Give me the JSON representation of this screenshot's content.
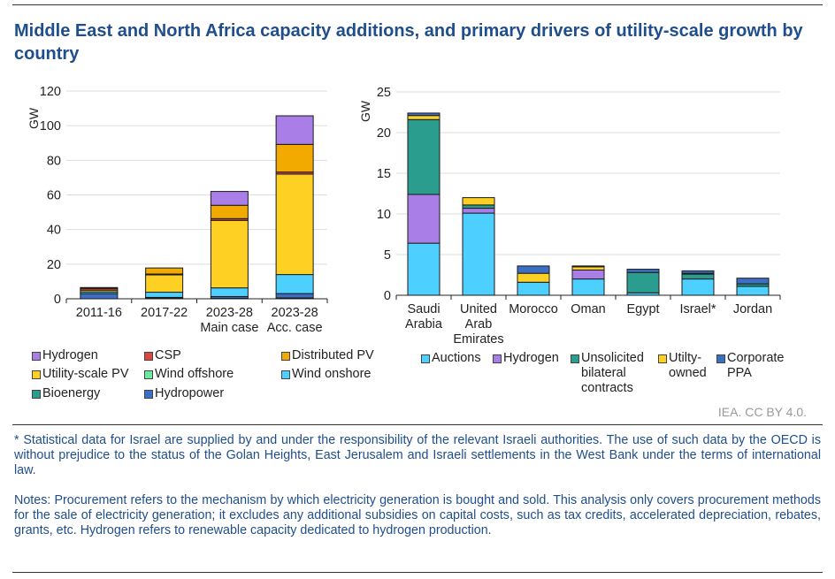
{
  "title": "Middle East and North Africa capacity additions, and primary drivers of utility-scale growth by country",
  "credit": "IEA. CC BY 4.0.",
  "footnote": "* Statistical data for Israel are supplied by and under the responsibility of the relevant Israeli authorities. The use of such data by the OECD is without prejudice to the status of the Golan Heights, East Jerusalem and Israeli settlements in the West Bank under the terms of international law.",
  "notes": "Notes: Procurement refers to the mechanism by which electricity generation is bought and sold. This analysis only covers procurement methods for the sale of electricity generation; it excludes any additional subsidies on capital costs, such as tax credits, accelerated depreciation, rebates, grants, etc. Hydrogen refers to renewable capacity dedicated to hydrogen production.",
  "chart_data": [
    {
      "type": "bar",
      "stacked": true,
      "ylabel": "GW",
      "ylim": [
        0,
        120
      ],
      "yticks": [
        0,
        20,
        40,
        60,
        80,
        100,
        120
      ],
      "grid": true,
      "legend_position": "bottom",
      "categories": [
        "2011-16",
        "2017-22",
        "2023-28\nMain case",
        "2023-28\nAcc. case"
      ],
      "series": [
        {
          "name": "Bioenergy",
          "color": "#2a9d8f",
          "values": [
            0,
            0.3,
            0.3,
            0.5
          ]
        },
        {
          "name": "Hydropower",
          "color": "#3a6fc4",
          "values": [
            3,
            0.5,
            1,
            2.5
          ]
        },
        {
          "name": "Wind onshore",
          "color": "#4dcfff",
          "values": [
            1,
            3,
            5,
            11
          ]
        },
        {
          "name": "Wind offshore",
          "color": "#6ee7a0",
          "values": [
            0,
            0,
            0,
            0
          ]
        },
        {
          "name": "Utility-scale PV",
          "color": "#fdd023",
          "values": [
            1,
            10,
            39,
            58
          ]
        },
        {
          "name": "CSP",
          "color": "#d9473f",
          "values": [
            1,
            0.5,
            1,
            1.2
          ]
        },
        {
          "name": "Distributed PV",
          "color": "#f2a900",
          "values": [
            0.5,
            3.5,
            7.7,
            16
          ]
        },
        {
          "name": "Hydrogen",
          "color": "#a97ee6",
          "values": [
            0,
            0,
            8,
            16.5
          ]
        }
      ],
      "legend_order": [
        "Hydrogen",
        "CSP",
        "Distributed PV",
        "Utility-scale PV",
        "Wind offshore",
        "Wind onshore",
        "Bioenergy",
        "Hydropower"
      ]
    },
    {
      "type": "bar",
      "stacked": true,
      "ylabel": "GW",
      "ylim": [
        0,
        25
      ],
      "yticks": [
        0,
        5,
        10,
        15,
        20,
        25
      ],
      "grid": true,
      "legend_position": "bottom",
      "categories": [
        "Saudi\nArabia",
        "United\nArab\nEmirates",
        "Morocco",
        "Oman",
        "Egypt",
        "Israel*",
        "Jordan"
      ],
      "series": [
        {
          "name": "Auctions",
          "color": "#4dcfff",
          "values": [
            6.4,
            10.1,
            1.6,
            2.0,
            0.3,
            2.0,
            1.1
          ]
        },
        {
          "name": "Hydrogen",
          "color": "#a97ee6",
          "values": [
            6.0,
            0.6,
            0,
            1.1,
            0,
            0,
            0
          ]
        },
        {
          "name": "Unsolicited bilateral contracts",
          "color": "#2a9d8f",
          "values": [
            9.2,
            0.4,
            0,
            0,
            2.5,
            0.6,
            0.3
          ]
        },
        {
          "name": "Utilty-owned",
          "color": "#fdd023",
          "values": [
            0.5,
            0.9,
            1.1,
            0.4,
            0,
            0.1,
            0
          ]
        },
        {
          "name": "Corporate PPA",
          "color": "#3a6fc4",
          "values": [
            0.3,
            0,
            0.9,
            0.1,
            0.4,
            0.3,
            0.7
          ]
        }
      ],
      "legend_labels": [
        "Auctions",
        "Hydrogen",
        "Unsolicited\nbilateral\ncontracts",
        "Utilty-\nowned",
        "Corporate\nPPA"
      ]
    }
  ]
}
